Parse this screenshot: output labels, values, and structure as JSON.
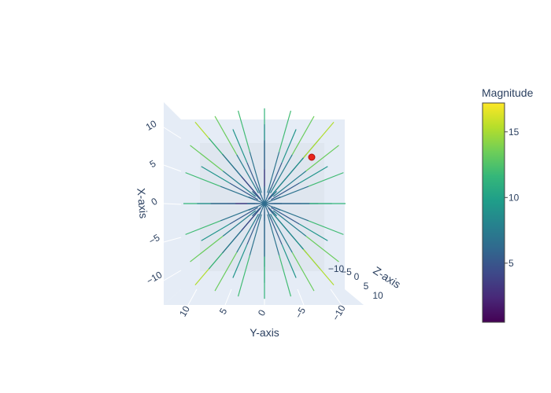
{
  "chart_data": {
    "type": "3d-vector-field",
    "title": "",
    "axes": {
      "x": {
        "label": "X-axis",
        "ticks": [
          "−10",
          "−5",
          "0",
          "5",
          "10"
        ],
        "range": [
          -12,
          12
        ]
      },
      "y": {
        "label": "Y-axis",
        "ticks": [
          "10",
          "5",
          "0",
          "−5",
          "−10"
        ],
        "range": [
          -12,
          12
        ]
      },
      "z": {
        "label": "Z-axis",
        "ticks": [
          "−10",
          "−5",
          "0",
          "5",
          "10"
        ],
        "range": [
          -12,
          12
        ]
      }
    },
    "field": {
      "description_of_values": "radial vectors pointing outward from origin on a grid -9..9 step 3 in x and y",
      "grid_values": [
        -9,
        -6,
        -3,
        3,
        6,
        9
      ],
      "magnitude_range": [
        0.5,
        17
      ]
    },
    "highlight_point": {
      "x": 6,
      "y": -6,
      "z": 0,
      "color": "#e8251b"
    },
    "colorbar": {
      "title": "Magnitude",
      "tickvals": [
        5,
        10,
        15
      ],
      "ticktext": [
        "5",
        "10",
        "15"
      ],
      "range": [
        0.5,
        17.2
      ],
      "colorscale": [
        "#440154",
        "#482878",
        "#3e4989",
        "#31688e",
        "#26828e",
        "#1f9e89",
        "#35b779",
        "#6ece58",
        "#b5de2b",
        "#fde725"
      ]
    },
    "grid": true,
    "scene_bgcolor": "#e5ecf6"
  }
}
